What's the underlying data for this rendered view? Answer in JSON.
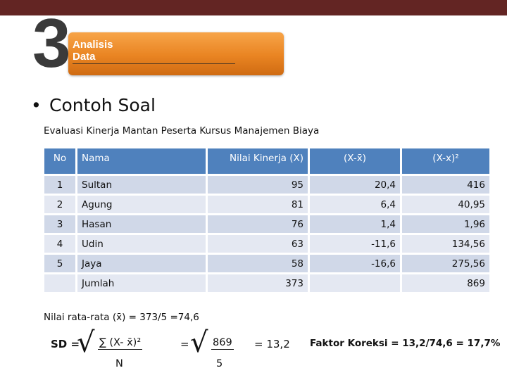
{
  "section": {
    "number": "3",
    "title": "Analisis Data"
  },
  "bullet": {
    "symbol": "•",
    "text": "Contoh Soal"
  },
  "caption": "Evaluasi Kinerja Mantan Peserta Kursus Manajemen Biaya",
  "table": {
    "headers": [
      "No",
      "Nama",
      "Nilai Kinerja (X)",
      "(X-x̄)",
      "(X-x)²"
    ],
    "rows": [
      [
        "1",
        "Sultan",
        "95",
        "20,4",
        "416"
      ],
      [
        "2",
        "Agung",
        "81",
        "6,4",
        "40,95"
      ],
      [
        "3",
        "Hasan",
        "76",
        "1,4",
        "1,96"
      ],
      [
        "4",
        "Udin",
        "63",
        "-11,6",
        "134,56"
      ],
      [
        "5",
        "Jaya",
        "58",
        "-16,6",
        "275,56"
      ]
    ],
    "total": {
      "label": "Jumlah",
      "x": "373",
      "sq": "869"
    }
  },
  "mean_text": "Nilai rata-rata (x̄) = 373/5 =74,6",
  "sd": {
    "label": "SD =",
    "root": "√",
    "numerator": "∑ (X- x̄)²",
    "denominator": "N",
    "eq2": "=",
    "numerator2": "869",
    "denominator2": "5",
    "result": "= 13,2"
  },
  "faktor": "Faktor Koreksi = 13,2/74,6 = 17,7%",
  "colors": {
    "top_bar": "#632523",
    "section_box": "#e98422",
    "table_header": "#4f81bd",
    "row_light": "#e4e8f2",
    "row_dark": "#d0d8e8"
  }
}
